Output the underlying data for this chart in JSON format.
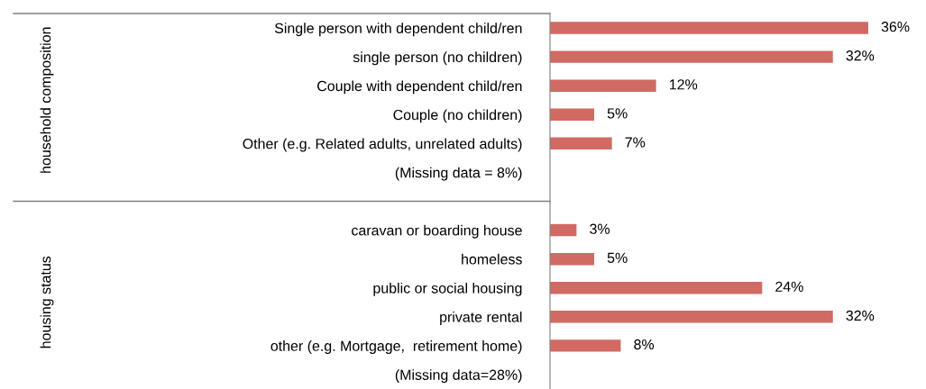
{
  "chart_data": {
    "type": "bar",
    "orientation": "horizontal",
    "data_labels": true,
    "grid": false,
    "categories": [
      "Single person with dependent child/ren",
      "single person (no children)",
      "Couple with dependent child/ren",
      "Couple (no children)",
      "Other (e.g. Related adults, unrelated adults)",
      "(Missing data = 8%)",
      null,
      "caravan or boarding house",
      "homeless",
      "public or social housing",
      "private rental",
      "other (e.g. Mortgage,  retirement home)",
      "(Missing data=28%)"
    ],
    "values": [
      36,
      32,
      12,
      5,
      7,
      null,
      null,
      3,
      5,
      24,
      32,
      8,
      null
    ],
    "value_labels": [
      "36%",
      "32%",
      "12%",
      "5%",
      "7%",
      null,
      null,
      "3%",
      "5%",
      "24%",
      "32%",
      "8%",
      null
    ],
    "color": "#d06a63",
    "annotations": [
      "household composition",
      "housing status"
    ]
  }
}
